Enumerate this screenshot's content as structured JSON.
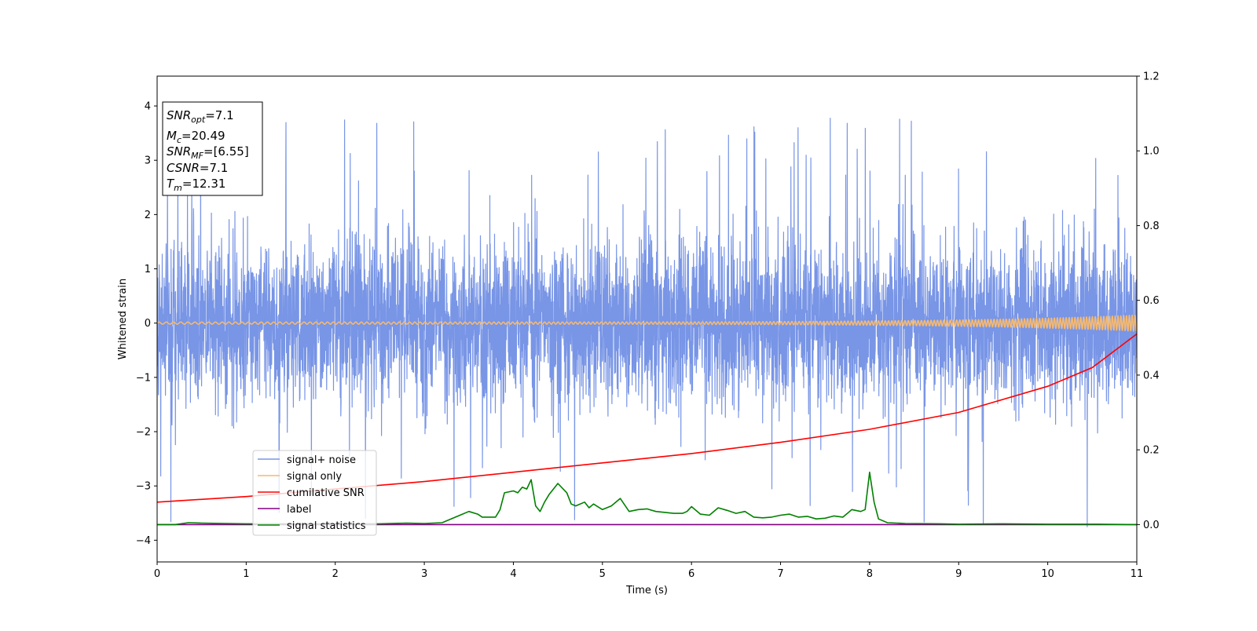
{
  "chart_data": {
    "type": "line",
    "xlabel": "Time (s)",
    "ylabel": "Whitened strain",
    "xlim": [
      0,
      11
    ],
    "ylim_left": [
      -4.4,
      4.55
    ],
    "ylim_right": [
      -0.1,
      1.2
    ],
    "x_ticks": [
      "0",
      "1",
      "2",
      "3",
      "4",
      "5",
      "6",
      "7",
      "8",
      "9",
      "10",
      "11"
    ],
    "y_ticks_left": [
      "−4",
      "−3",
      "−2",
      "−1",
      "0",
      "1",
      "2",
      "3",
      "4"
    ],
    "y_ticks_right": [
      "0.0",
      "0.2",
      "0.4",
      "0.6",
      "0.8",
      "1.0",
      "1.2"
    ],
    "grid": false,
    "legend_position": "lower-left",
    "annotation": {
      "snr_opt": {
        "base": "SNR",
        "sub": "opt",
        "value": "=7.1"
      },
      "mc": {
        "base": "M",
        "sub": "c",
        "value": "=20.49"
      },
      "snr_mf": {
        "base": "SNR",
        "sub": "MF",
        "value": "=[6.55]"
      },
      "csnr": {
        "base": "CSNR",
        "sub": "",
        "value": "=7.1"
      },
      "tm": {
        "base": "T",
        "sub": "m",
        "value": "=12.31"
      }
    },
    "series": [
      {
        "name": "signal+ noise",
        "color": "#7895e6",
        "axis": "left",
        "kind": "noise",
        "std": 0.75,
        "max_abs": 4.1
      },
      {
        "name": "signal only",
        "color": "#f5b971",
        "axis": "left",
        "kind": "chirp",
        "amplitude_start": 0.02,
        "amplitude_end": 0.15
      },
      {
        "name": "cumilative SNR",
        "color": "#ff0000",
        "axis": "right",
        "x": [
          0,
          1,
          2,
          3,
          4,
          5,
          6,
          7,
          8,
          9,
          10,
          10.5,
          11
        ],
        "y": [
          0.06,
          0.075,
          0.095,
          0.115,
          0.14,
          0.165,
          0.19,
          0.22,
          0.255,
          0.3,
          0.37,
          0.42,
          0.51
        ]
      },
      {
        "name": "label",
        "color": "#800080",
        "axis": "right",
        "x": [
          0,
          11
        ],
        "y": [
          0.0,
          0.0
        ]
      },
      {
        "name": "signal statistics",
        "color": "#008000",
        "axis": "right",
        "x": [
          0,
          0.2,
          0.35,
          0.5,
          1.0,
          1.5,
          2.0,
          2.5,
          2.8,
          3.0,
          3.2,
          3.4,
          3.5,
          3.6,
          3.65,
          3.8,
          3.85,
          3.9,
          4.0,
          4.05,
          4.1,
          4.15,
          4.2,
          4.25,
          4.3,
          4.35,
          4.4,
          4.5,
          4.6,
          4.65,
          4.7,
          4.8,
          4.85,
          4.9,
          5.0,
          5.1,
          5.2,
          5.3,
          5.4,
          5.5,
          5.6,
          5.8,
          5.9,
          5.95,
          6.0,
          6.1,
          6.2,
          6.3,
          6.4,
          6.5,
          6.6,
          6.7,
          6.8,
          6.9,
          7.0,
          7.1,
          7.2,
          7.3,
          7.4,
          7.5,
          7.6,
          7.7,
          7.75,
          7.8,
          7.9,
          7.95,
          8.0,
          8.05,
          8.1,
          8.2,
          8.4,
          8.8,
          9.0,
          9.5,
          10.0,
          10.5,
          11.0
        ],
        "y": [
          0.0,
          0.0,
          0.005,
          0.004,
          0.002,
          0.002,
          0.002,
          0.002,
          0.004,
          0.003,
          0.005,
          0.025,
          0.035,
          0.028,
          0.02,
          0.02,
          0.04,
          0.085,
          0.09,
          0.085,
          0.1,
          0.095,
          0.12,
          0.05,
          0.035,
          0.06,
          0.08,
          0.11,
          0.085,
          0.055,
          0.05,
          0.06,
          0.045,
          0.055,
          0.04,
          0.05,
          0.07,
          0.035,
          0.04,
          0.042,
          0.035,
          0.03,
          0.03,
          0.035,
          0.048,
          0.028,
          0.025,
          0.045,
          0.038,
          0.03,
          0.035,
          0.02,
          0.018,
          0.02,
          0.025,
          0.028,
          0.02,
          0.022,
          0.015,
          0.017,
          0.023,
          0.02,
          0.03,
          0.04,
          0.035,
          0.04,
          0.14,
          0.06,
          0.015,
          0.005,
          0.003,
          0.002,
          0.001,
          0.002,
          0.001,
          0.001,
          0.0
        ]
      }
    ]
  }
}
